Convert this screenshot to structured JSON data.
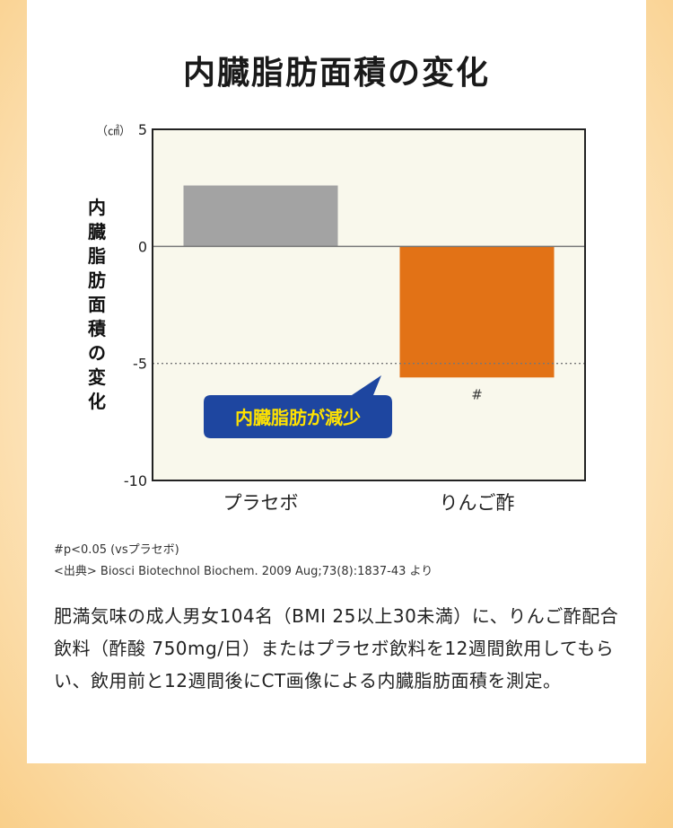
{
  "page": {
    "title": "内臓脂肪面積の変化",
    "note_sig": "#p<0.05 (vsプラセボ)",
    "note_source": "<出典> Biosci Biotechnol Biochem. 2009 Aug;73(8):1837-43 より",
    "description": "肥満気味の成人男女104名（BMI 25以上30未満）に、りんご酢配合飲料（酢酸 750mg/日）またはプラセボ飲料を12週間飲用してもらい、飲用前と12週間後にCT画像による内臓脂肪面積を測定。"
  },
  "chart_data": {
    "type": "bar",
    "unit": "（㎠）",
    "ylabel": "内臓脂肪面積の変化",
    "ylim": [
      -10,
      5
    ],
    "yticks": [
      5,
      0,
      -5,
      -10
    ],
    "categories": [
      "プラセボ",
      "りんご酢"
    ],
    "values": [
      2.6,
      -5.6
    ],
    "bar_colors": [
      "#a3a3a3",
      "#e27216"
    ],
    "plot_background": "#f9f8ec",
    "reference_line": -5,
    "marks": [
      "",
      "#"
    ],
    "callout": "内臓脂肪が減少",
    "callout_color": "#1e46a0",
    "callout_text_color": "#ffe200",
    "grid": false,
    "legend": "none"
  }
}
